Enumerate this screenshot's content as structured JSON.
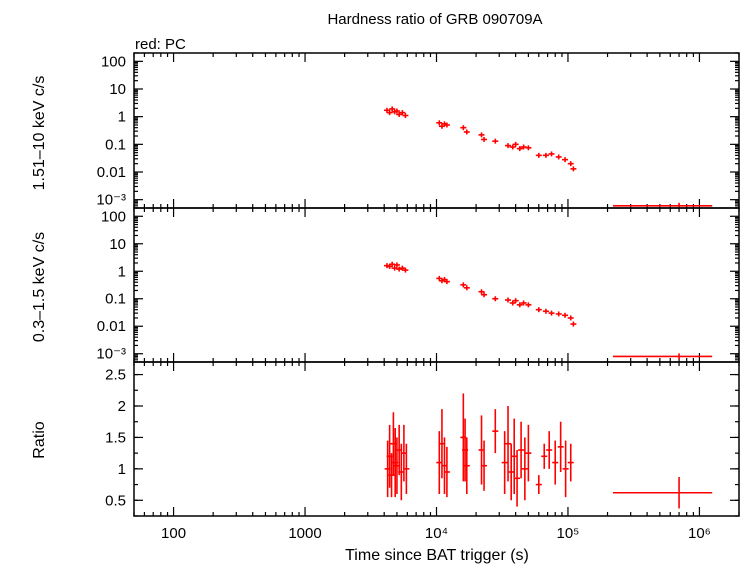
{
  "title": "Hardness ratio of GRB 090709A",
  "subtitle": "red: PC",
  "xlabel": "Time since BAT trigger (s)",
  "colors": {
    "series": "#ff0000",
    "axes": "#000000"
  },
  "chart_data": [
    {
      "type": "scatter",
      "name": "hard",
      "ylabel": "1.51–10 keV c/s",
      "yscale": "log",
      "xscale": "log",
      "xlim": [
        50,
        2000000
      ],
      "ylim": [
        0.0005,
        200
      ],
      "ytick_labels": [
        "100",
        "10",
        "1",
        "0.1",
        "0.01",
        "10⁻³"
      ],
      "yticks": [
        100,
        10,
        1,
        0.1,
        0.01,
        0.001
      ],
      "series": [
        {
          "points": [
            [
              4200,
              1.7
            ],
            [
              4400,
              1.4
            ],
            [
              4600,
              1.9
            ],
            [
              4800,
              1.5
            ],
            [
              5000,
              1.6
            ],
            [
              5200,
              1.2
            ],
            [
              5500,
              1.4
            ],
            [
              5800,
              1.1
            ],
            [
              10500,
              0.6
            ],
            [
              11000,
              0.45
            ],
            [
              11500,
              0.55
            ],
            [
              12000,
              0.5
            ],
            [
              16000,
              0.4
            ],
            [
              17000,
              0.28
            ],
            [
              22000,
              0.22
            ],
            [
              23000,
              0.15
            ],
            [
              28000,
              0.13
            ],
            [
              35000,
              0.09
            ],
            [
              38000,
              0.08
            ],
            [
              40000,
              0.1
            ],
            [
              43000,
              0.07
            ],
            [
              46000,
              0.08
            ],
            [
              50000,
              0.075
            ],
            [
              60000,
              0.04
            ],
            [
              68000,
              0.04
            ],
            [
              75000,
              0.045
            ],
            [
              85000,
              0.035
            ],
            [
              95000,
              0.028
            ],
            [
              105000,
              0.02
            ],
            [
              110000,
              0.013
            ],
            [
              700000,
              0.0006
            ]
          ],
          "x_error_last": [
            220000,
            1250000
          ]
        }
      ]
    },
    {
      "type": "scatter",
      "name": "soft",
      "ylabel": "0.3–1.5 keV c/s",
      "yscale": "log",
      "xscale": "log",
      "xlim": [
        50,
        2000000
      ],
      "ylim": [
        0.0005,
        200
      ],
      "ytick_labels": [
        "100",
        "10",
        "1",
        "0.1",
        "0.01",
        "10⁻³"
      ],
      "yticks": [
        100,
        10,
        1,
        0.1,
        0.01,
        0.001
      ],
      "series": [
        {
          "points": [
            [
              4200,
              1.6
            ],
            [
              4400,
              1.5
            ],
            [
              4600,
              1.8
            ],
            [
              4800,
              1.3
            ],
            [
              5000,
              1.7
            ],
            [
              5200,
              1.2
            ],
            [
              5500,
              1.3
            ],
            [
              5800,
              1.1
            ],
            [
              10500,
              0.55
            ],
            [
              11000,
              0.45
            ],
            [
              11500,
              0.5
            ],
            [
              12000,
              0.42
            ],
            [
              16000,
              0.32
            ],
            [
              17000,
              0.25
            ],
            [
              22000,
              0.18
            ],
            [
              23000,
              0.14
            ],
            [
              28000,
              0.1
            ],
            [
              35000,
              0.09
            ],
            [
              38000,
              0.07
            ],
            [
              40000,
              0.085
            ],
            [
              43000,
              0.06
            ],
            [
              46000,
              0.07
            ],
            [
              50000,
              0.06
            ],
            [
              60000,
              0.04
            ],
            [
              68000,
              0.035
            ],
            [
              75000,
              0.03
            ],
            [
              85000,
              0.028
            ],
            [
              95000,
              0.025
            ],
            [
              105000,
              0.02
            ],
            [
              110000,
              0.012
            ],
            [
              700000,
              0.0008
            ]
          ],
          "x_error_last": [
            220000,
            1250000
          ]
        }
      ]
    },
    {
      "type": "scatter",
      "name": "ratio",
      "ylabel": "Ratio",
      "yscale": "linear",
      "xscale": "log",
      "xlim": [
        50,
        2000000
      ],
      "ylim": [
        0.25,
        2.7
      ],
      "ytick_labels": [
        "2.5",
        "2",
        "1.5",
        "1",
        "0.5"
      ],
      "yticks": [
        2.5,
        2,
        1.5,
        1,
        0.5
      ],
      "series": [
        {
          "points": [
            [
              4250,
              1.0,
              0.45
            ],
            [
              4400,
              1.2,
              0.5
            ],
            [
              4550,
              0.9,
              0.35
            ],
            [
              4700,
              1.4,
              0.5
            ],
            [
              4850,
              1.1,
              0.55
            ],
            [
              5000,
              1.05,
              0.45
            ],
            [
              5200,
              1.3,
              0.4
            ],
            [
              5400,
              0.95,
              0.45
            ],
            [
              5650,
              1.25,
              0.45
            ],
            [
              5900,
              1.0,
              0.4
            ],
            [
              10500,
              1.1,
              0.5
            ],
            [
              11000,
              1.4,
              0.55
            ],
            [
              11500,
              1.05,
              0.45
            ],
            [
              12000,
              0.95,
              0.4
            ],
            [
              16000,
              1.5,
              0.7
            ],
            [
              16500,
              1.3,
              0.5
            ],
            [
              17000,
              1.05,
              0.45
            ],
            [
              22000,
              1.3,
              0.55
            ],
            [
              23000,
              1.05,
              0.4
            ],
            [
              28000,
              1.6,
              0.35
            ],
            [
              33000,
              1.1,
              0.5
            ],
            [
              35000,
              1.4,
              0.6
            ],
            [
              37000,
              0.95,
              0.45
            ],
            [
              39000,
              1.2,
              0.6
            ],
            [
              41000,
              0.85,
              0.45
            ],
            [
              44000,
              1.3,
              0.45
            ],
            [
              47000,
              1.0,
              0.5
            ],
            [
              50000,
              1.25,
              0.45
            ],
            [
              60000,
              0.75,
              0.15
            ],
            [
              66000,
              1.2,
              0.2
            ],
            [
              72000,
              1.3,
              0.3
            ],
            [
              80000,
              1.1,
              0.35
            ],
            [
              88000,
              1.35,
              0.4
            ],
            [
              96000,
              1.0,
              0.45
            ],
            [
              105000,
              1.1,
              0.3
            ],
            [
              700000,
              0.62,
              0.25
            ]
          ],
          "x_error_last": [
            220000,
            1250000
          ]
        }
      ]
    }
  ],
  "xtick_labels": [
    "100",
    "1000",
    "10⁴",
    "10⁵",
    "10⁶"
  ],
  "xticks": [
    100,
    1000,
    10000,
    100000,
    1000000
  ]
}
